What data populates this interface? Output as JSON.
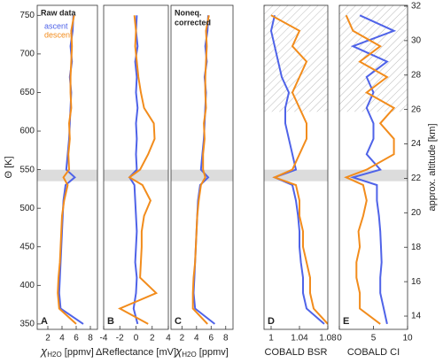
{
  "chart_data": [
    {
      "type": "profile",
      "panel_label": "A",
      "annotation": [
        "Raw data"
      ],
      "legend": true,
      "xlabel": [
        "χ",
        "H2O",
        " [ppmv]"
      ],
      "xlim": [
        0.5,
        9
      ],
      "xticks": [
        2,
        4,
        6,
        8
      ],
      "ylabel": "Θ [K]",
      "ylim": [
        343,
        763
      ],
      "yticks": [
        350,
        400,
        450,
        500,
        550,
        600,
        650,
        700,
        750
      ],
      "shaded_range": [
        535,
        550
      ],
      "y": [
        350,
        370,
        390,
        410,
        430,
        450,
        470,
        490,
        510,
        530,
        540,
        550,
        570,
        590,
        610,
        630,
        650,
        670,
        690,
        710,
        730,
        750
      ],
      "series": [
        {
          "name": "ascent",
          "color": "#4f63e8",
          "values": [
            7,
            3.8,
            3.6,
            3.7,
            3.8,
            3.9,
            4.0,
            4.1,
            4.2,
            4.5,
            5.8,
            4.6,
            4.8,
            5.0,
            5.1,
            5.2,
            5.3,
            5.1,
            5.4,
            5.2,
            5.5,
            5.6
          ]
        },
        {
          "name": "descent",
          "color": "#f28c1c",
          "values": [
            6,
            3.6,
            3.4,
            3.5,
            3.7,
            3.8,
            3.9,
            4.0,
            4.3,
            4.8,
            4.2,
            5.0,
            4.9,
            5.1,
            5.0,
            5.3,
            5.2,
            5.2,
            5.3,
            5.4,
            5.3,
            5.7
          ]
        }
      ]
    },
    {
      "type": "profile",
      "panel_label": "B",
      "xlabel": [
        "ΔReflectance [mV]"
      ],
      "xlim": [
        -4,
        4
      ],
      "xticks": [
        -4,
        -2,
        0,
        2,
        4
      ],
      "y": [
        350,
        370,
        390,
        410,
        430,
        450,
        470,
        490,
        510,
        530,
        540,
        550,
        570,
        590,
        610,
        630,
        650,
        670,
        690,
        710,
        730,
        750
      ],
      "series": [
        {
          "color": "#4f63e8",
          "values": [
            0.2,
            -0.3,
            0,
            0.1,
            -0.1,
            0,
            0.1,
            0,
            -0.1,
            -0.2,
            -0.8,
            0.1,
            0,
            0.1,
            0,
            0.2,
            0,
            0.1,
            -0.1,
            0.2,
            0,
            0.1
          ]
        },
        {
          "color": "#f28c1c",
          "values": [
            1.5,
            -2,
            2.5,
            0.5,
            0.6,
            0.7,
            0.7,
            1.0,
            1.8,
            0.8,
            -0.8,
            0.5,
            1.5,
            2.3,
            2.2,
            1.0,
            0.6,
            0.3,
            0.1,
            -0.1,
            0,
            -0.2
          ]
        }
      ]
    },
    {
      "type": "profile",
      "panel_label": "C",
      "annotation": [
        "Noneq.",
        "corrected"
      ],
      "xlabel": [
        "χ",
        "H2O",
        " [ppmv]"
      ],
      "xlim": [
        0.5,
        9
      ],
      "xticks": [
        2,
        4,
        6,
        8
      ],
      "y": [
        350,
        370,
        390,
        410,
        430,
        450,
        470,
        490,
        510,
        530,
        540,
        550,
        570,
        590,
        610,
        630,
        650,
        670,
        690,
        710,
        730,
        750
      ],
      "series": [
        {
          "color": "#4f63e8",
          "values": [
            6.5,
            3.8,
            3.6,
            3.7,
            3.8,
            3.9,
            4.0,
            4.1,
            4.2,
            4.5,
            5.6,
            4.6,
            4.8,
            5.0,
            5.1,
            5.2,
            5.3,
            5.1,
            5.4,
            5.2,
            5.5,
            5.6
          ]
        },
        {
          "color": "#f28c1c",
          "values": [
            5.5,
            3.5,
            3.5,
            3.6,
            3.8,
            3.9,
            4.0,
            4.1,
            4.3,
            4.6,
            5.2,
            4.9,
            4.9,
            5.1,
            5.0,
            5.3,
            5.2,
            5.2,
            5.3,
            5.4,
            5.3,
            5.7
          ]
        }
      ]
    },
    {
      "type": "profile",
      "panel_label": "D",
      "xlabel": [
        "COBALD BSR"
      ],
      "xlim": [
        0.99,
        1.08
      ],
      "xticks": [
        1,
        1.04,
        1.08
      ],
      "hatched_range": [
        625,
        763
      ],
      "y": [
        350,
        370,
        390,
        410,
        430,
        450,
        470,
        490,
        510,
        530,
        540,
        550,
        570,
        590,
        610,
        630,
        650,
        670,
        690,
        710,
        730,
        750
      ],
      "series": [
        {
          "color": "#4f63e8",
          "values": [
            1.075,
            1.05,
            1.045,
            1.045,
            1.042,
            1.04,
            1.04,
            1.038,
            1.035,
            1.03,
            1.005,
            1.035,
            1.03,
            1.025,
            1.02,
            1.02,
            1.025,
            1.015,
            1.01,
            1.005,
            1.0,
            1.005
          ]
        },
        {
          "color": "#f28c1c",
          "values": [
            1.08,
            1.06,
            1.055,
            1.055,
            1.05,
            1.045,
            1.045,
            1.04,
            1.04,
            1.035,
            1.005,
            1.03,
            1.04,
            1.05,
            1.05,
            1.04,
            1.03,
            1.04,
            1.05,
            1.03,
            1.04,
            1.0
          ]
        }
      ]
    },
    {
      "type": "profile",
      "panel_label": "E",
      "xlabel": [
        "COBALD CI"
      ],
      "xlim": [
        0,
        10
      ],
      "xticks": [
        0,
        5,
        10
      ],
      "hatched_range": [
        625,
        763
      ],
      "y2label": "approx. altitude [km]",
      "y2lim": [
        13.23,
        32.05
      ],
      "y2ticks": [
        14,
        16,
        18,
        20,
        22,
        24,
        26,
        28,
        30,
        32
      ],
      "y": [
        350,
        370,
        390,
        410,
        430,
        450,
        470,
        490,
        510,
        530,
        540,
        550,
        570,
        590,
        610,
        630,
        650,
        670,
        690,
        710,
        730,
        750
      ],
      "series": [
        {
          "color": "#4f63e8",
          "values": [
            7,
            6.5,
            6,
            6,
            6.2,
            6.1,
            6,
            5.8,
            5.5,
            5.5,
            2,
            6,
            4,
            5,
            5,
            4,
            5,
            4,
            7,
            2,
            8,
            3
          ]
        },
        {
          "color": "#f28c1c",
          "values": [
            6,
            3,
            3,
            2.5,
            2.5,
            3,
            2.8,
            3.5,
            4,
            3.5,
            1,
            4,
            8,
            8,
            6,
            8,
            4,
            7,
            3,
            6,
            2,
            1
          ]
        }
      ]
    }
  ]
}
